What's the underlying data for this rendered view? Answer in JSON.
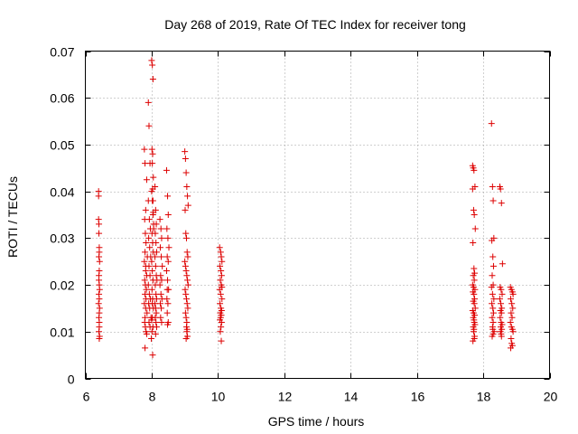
{
  "chart_data": {
    "type": "scatter",
    "title": "Day 268 of 2019, Rate Of TEC Index for receiver tong",
    "xlabel": "GPS time / hours",
    "ylabel": "ROTI / TECUs",
    "xlim": [
      6,
      20
    ],
    "ylim": [
      0,
      0.07
    ],
    "xticks": [
      6,
      8,
      10,
      12,
      14,
      16,
      18,
      20
    ],
    "xtick_labels": [
      "6",
      "8",
      "10",
      "12",
      "14",
      "16",
      "18",
      "20"
    ],
    "yticks": [
      0,
      0.01,
      0.02,
      0.03,
      0.04,
      0.05,
      0.06,
      0.07
    ],
    "ytick_labels": [
      "0",
      "0.01",
      "0.02",
      "0.03",
      "0.04",
      "0.05",
      "0.06",
      "0.07"
    ],
    "grid": true,
    "marker": "+",
    "color": "#dd0000",
    "series": [
      {
        "name": "ROTI",
        "x": [
          6.4,
          6.4,
          6.4,
          6.41,
          6.41,
          6.42,
          6.42,
          6.41,
          6.43,
          6.42,
          6.41,
          6.42,
          6.43,
          6.41,
          6.42,
          6.4,
          6.43,
          6.42,
          6.41,
          6.42,
          6.42,
          6.41,
          6.43,
          6.42,
          6.41,
          7.78,
          7.8,
          7.82,
          7.79,
          7.81,
          7.83,
          7.8,
          7.78,
          7.82,
          7.85,
          7.79,
          7.81,
          7.84,
          7.8,
          7.83,
          7.78,
          7.82,
          7.86,
          7.8,
          7.79,
          7.81,
          7.83,
          7.85,
          7.8,
          7.82,
          7.9,
          7.92,
          7.95,
          7.9,
          7.93,
          7.96,
          7.91,
          7.94,
          7.97,
          7.92,
          7.95,
          7.9,
          7.93,
          7.96,
          7.91,
          7.94,
          7.98,
          7.92,
          7.95,
          7.99,
          8.0,
          8.02,
          8.04,
          8.01,
          8.03,
          8.05,
          8.0,
          8.02,
          8.04,
          8.06,
          8.01,
          8.03,
          8.05,
          8.0,
          8.02,
          8.04,
          8.01,
          8.03,
          8.05,
          8.02,
          8.04,
          8.01,
          8.03,
          8.1,
          8.12,
          8.14,
          8.11,
          8.13,
          8.15,
          8.1,
          8.12,
          8.14,
          8.16,
          8.11,
          8.13,
          8.15,
          8.1,
          8.12,
          8.14,
          8.11,
          8.13,
          8.15,
          8.12,
          8.25,
          8.28,
          8.3,
          8.26,
          8.29,
          8.32,
          8.27,
          8.3,
          8.25,
          8.28,
          8.31,
          8.26,
          8.29,
          8.27,
          8.3,
          8.45,
          8.48,
          8.5,
          8.46,
          8.49,
          8.52,
          8.47,
          8.5,
          8.45,
          8.48,
          8.51,
          8.46,
          8.49,
          8.47,
          8.5,
          8.48,
          7.85,
          7.87,
          8.02,
          8.03,
          8.04,
          8.05,
          8.06,
          8.0,
          8.02,
          8.47,
          9.0,
          9.02,
          9.04,
          9.06,
          9.08,
          9.1,
          9.01,
          9.03,
          9.05,
          9.07,
          9.09,
          9.0,
          9.02,
          9.04,
          9.06,
          9.08,
          9.1,
          9.01,
          9.03,
          9.05,
          9.07,
          9.09,
          9.02,
          9.04,
          9.06,
          9.05,
          9.07,
          9.06,
          9.08,
          9.04,
          10.05,
          10.08,
          10.1,
          10.12,
          10.06,
          10.09,
          10.11,
          10.07,
          10.1,
          10.05,
          10.08,
          10.12,
          10.06,
          10.09,
          10.11,
          10.07,
          10.1,
          10.08,
          10.06,
          10.11,
          10.09,
          10.07,
          10.1,
          10.12,
          17.68,
          17.7,
          17.72,
          17.75,
          17.68,
          17.71,
          17.73,
          17.76,
          17.69,
          17.72,
          17.74,
          17.7,
          17.73,
          17.68,
          17.71,
          17.75,
          17.69,
          17.72,
          17.74,
          17.7,
          17.73,
          17.76,
          17.68,
          17.71,
          17.74,
          17.7,
          17.72,
          17.73,
          17.75,
          17.7,
          17.72,
          17.71,
          17.74,
          17.73,
          17.69,
          18.25,
          18.28,
          18.3,
          18.32,
          18.26,
          18.29,
          18.31,
          18.27,
          18.3,
          18.25,
          18.28,
          18.32,
          18.26,
          18.29,
          18.31,
          18.27,
          18.3,
          18.28,
          18.29,
          18.33,
          18.27,
          18.3,
          18.5,
          18.52,
          18.55,
          18.58,
          18.51,
          18.54,
          18.57,
          18.5,
          18.53,
          18.56,
          18.52,
          18.55,
          18.51,
          18.54,
          18.57,
          18.53,
          18.56,
          18.52,
          18.55,
          18.54,
          18.82,
          18.85,
          18.88,
          18.9,
          18.83,
          18.86,
          18.89,
          18.84,
          18.87,
          18.82,
          18.85,
          18.88,
          18.9,
          18.84,
          18.86,
          18.88,
          18.83
        ],
        "y": [
          0.04,
          0.039,
          0.034,
          0.033,
          0.031,
          0.028,
          0.027,
          0.026,
          0.025,
          0.023,
          0.021,
          0.02,
          0.019,
          0.018,
          0.017,
          0.016,
          0.015,
          0.014,
          0.013,
          0.012,
          0.011,
          0.01,
          0.009,
          0.0085,
          0.022,
          0.049,
          0.046,
          0.036,
          0.034,
          0.031,
          0.029,
          0.027,
          0.025,
          0.023,
          0.022,
          0.021,
          0.02,
          0.019,
          0.018,
          0.017,
          0.016,
          0.015,
          0.014,
          0.013,
          0.012,
          0.011,
          0.01,
          0.0095,
          0.0065,
          0.024,
          0.059,
          0.054,
          0.046,
          0.038,
          0.034,
          0.032,
          0.03,
          0.028,
          0.026,
          0.024,
          0.022,
          0.02,
          0.018,
          0.017,
          0.016,
          0.015,
          0.013,
          0.012,
          0.011,
          0.0085,
          0.068,
          0.067,
          0.064,
          0.049,
          0.048,
          0.043,
          0.04,
          0.038,
          0.035,
          0.033,
          0.031,
          0.029,
          0.027,
          0.025,
          0.023,
          0.021,
          0.019,
          0.017,
          0.015,
          0.013,
          0.011,
          0.01,
          0.005,
          0.041,
          0.036,
          0.033,
          0.031,
          0.029,
          0.027,
          0.026,
          0.024,
          0.022,
          0.021,
          0.02,
          0.018,
          0.017,
          0.016,
          0.015,
          0.014,
          0.013,
          0.012,
          0.011,
          0.0095,
          0.034,
          0.032,
          0.03,
          0.028,
          0.026,
          0.024,
          0.022,
          0.021,
          0.02,
          0.018,
          0.017,
          0.016,
          0.015,
          0.013,
          0.012,
          0.0445,
          0.039,
          0.035,
          0.032,
          0.03,
          0.028,
          0.026,
          0.025,
          0.023,
          0.021,
          0.019,
          0.017,
          0.016,
          0.014,
          0.012,
          0.0115,
          0.0425,
          0.026,
          0.046,
          0.0405,
          0.038,
          0.0355,
          0.032,
          0.0125,
          0.016,
          0.019,
          0.0485,
          0.047,
          0.044,
          0.041,
          0.039,
          0.037,
          0.036,
          0.031,
          0.03,
          0.027,
          0.026,
          0.025,
          0.024,
          0.023,
          0.022,
          0.021,
          0.02,
          0.019,
          0.018,
          0.017,
          0.016,
          0.015,
          0.014,
          0.013,
          0.012,
          0.011,
          0.0105,
          0.01,
          0.009,
          0.0085,
          0.028,
          0.027,
          0.026,
          0.025,
          0.024,
          0.023,
          0.022,
          0.021,
          0.02,
          0.019,
          0.018,
          0.017,
          0.016,
          0.015,
          0.0145,
          0.014,
          0.0135,
          0.013,
          0.0125,
          0.012,
          0.011,
          0.01,
          0.008,
          0.0195,
          0.0455,
          0.045,
          0.0445,
          0.041,
          0.0405,
          0.036,
          0.035,
          0.032,
          0.029,
          0.0235,
          0.0225,
          0.022,
          0.021,
          0.02,
          0.0195,
          0.019,
          0.0185,
          0.018,
          0.017,
          0.0165,
          0.016,
          0.015,
          0.0145,
          0.014,
          0.0135,
          0.013,
          0.0125,
          0.012,
          0.0115,
          0.011,
          0.0105,
          0.01,
          0.009,
          0.0085,
          0.008,
          0.0545,
          0.041,
          0.038,
          0.03,
          0.0295,
          0.026,
          0.024,
          0.022,
          0.02,
          0.0195,
          0.018,
          0.017,
          0.016,
          0.015,
          0.014,
          0.013,
          0.012,
          0.011,
          0.0105,
          0.01,
          0.009,
          0.0095,
          0.041,
          0.0405,
          0.0375,
          0.0245,
          0.0195,
          0.019,
          0.018,
          0.017,
          0.016,
          0.015,
          0.0145,
          0.014,
          0.013,
          0.012,
          0.0115,
          0.011,
          0.0105,
          0.01,
          0.009,
          0.0095,
          0.0195,
          0.019,
          0.0185,
          0.018,
          0.017,
          0.016,
          0.015,
          0.014,
          0.013,
          0.012,
          0.011,
          0.0105,
          0.01,
          0.0085,
          0.0075,
          0.007,
          0.0065
        ]
      }
    ]
  }
}
